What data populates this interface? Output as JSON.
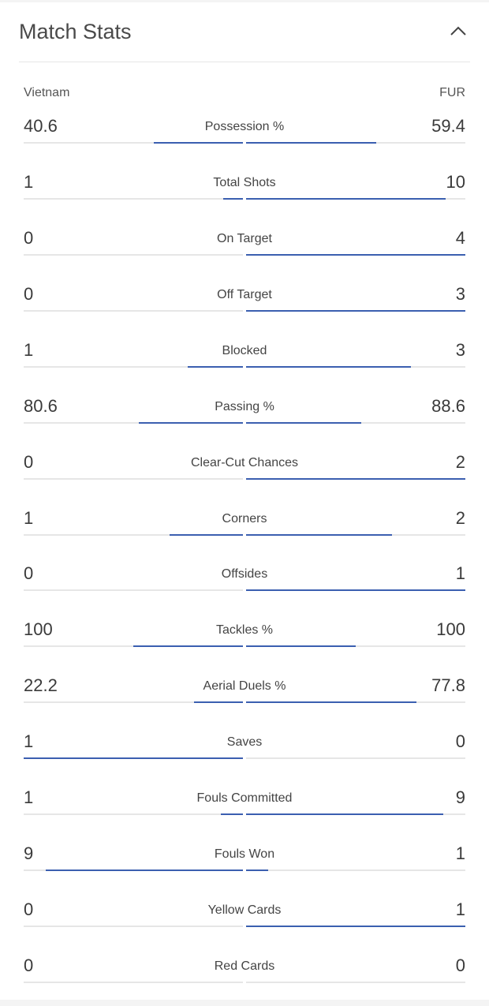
{
  "header": {
    "title": "Match Stats",
    "collapse_icon": "chevron-up-icon"
  },
  "teams": {
    "home": "Vietnam",
    "away": "FUR"
  },
  "colors": {
    "bar": "#3b5fb0",
    "track": "#e6e6e6"
  },
  "stats": [
    {
      "label": "Possession %",
      "home": "40.6",
      "away": "59.4",
      "home_share": 0.406,
      "away_share": 0.594
    },
    {
      "label": "Total Shots",
      "home": "1",
      "away": "10",
      "home_share": 0.091,
      "away_share": 0.909
    },
    {
      "label": "On Target",
      "home": "0",
      "away": "4",
      "home_share": 0,
      "away_share": 1
    },
    {
      "label": "Off Target",
      "home": "0",
      "away": "3",
      "home_share": 0,
      "away_share": 1
    },
    {
      "label": "Blocked",
      "home": "1",
      "away": "3",
      "home_share": 0.25,
      "away_share": 0.75
    },
    {
      "label": "Passing %",
      "home": "80.6",
      "away": "88.6",
      "home_share": 0.476,
      "away_share": 0.524
    },
    {
      "label": "Clear-Cut Chances",
      "home": "0",
      "away": "2",
      "home_share": 0,
      "away_share": 1
    },
    {
      "label": "Corners",
      "home": "1",
      "away": "2",
      "home_share": 0.333,
      "away_share": 0.667
    },
    {
      "label": "Offsides",
      "home": "0",
      "away": "1",
      "home_share": 0,
      "away_share": 1
    },
    {
      "label": "Tackles %",
      "home": "100",
      "away": "100",
      "home_share": 0.5,
      "away_share": 0.5
    },
    {
      "label": "Aerial Duels %",
      "home": "22.2",
      "away": "77.8",
      "home_share": 0.222,
      "away_share": 0.778
    },
    {
      "label": "Saves",
      "home": "1",
      "away": "0",
      "home_share": 1,
      "away_share": 0
    },
    {
      "label": "Fouls Committed",
      "home": "1",
      "away": "9",
      "home_share": 0.1,
      "away_share": 0.9
    },
    {
      "label": "Fouls Won",
      "home": "9",
      "away": "1",
      "home_share": 0.9,
      "away_share": 0.1
    },
    {
      "label": "Yellow Cards",
      "home": "0",
      "away": "1",
      "home_share": 0,
      "away_share": 1
    },
    {
      "label": "Red Cards",
      "home": "0",
      "away": "0",
      "home_share": 0,
      "away_share": 0
    }
  ]
}
